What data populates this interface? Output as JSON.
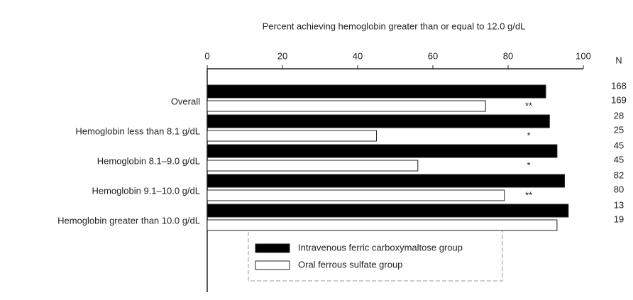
{
  "chart_data": {
    "type": "hbar",
    "title": "Percent achieving hemoglobin greater than or equal to 12.0 g/dL",
    "categories": [
      "Overall",
      "Hemoglobin less than 8.1 g/dL",
      "Hemoglobin 8.1–9.0 g/dL",
      "Hemoglobin 9.1–10.0 g/dL",
      "Hemoglobin greater than 10.0 g/dL"
    ],
    "series": [
      {
        "name": "Intravenous ferric carboxymaltose group",
        "color": "#000000",
        "values": [
          90,
          91,
          93,
          95,
          96
        ],
        "n": [
          168,
          28,
          45,
          82,
          13
        ]
      },
      {
        "name": "Oral ferrous sulfate group",
        "color": "#ffffff",
        "values": [
          74,
          45,
          56,
          79,
          93
        ],
        "n": [
          169,
          25,
          45,
          80,
          19
        ]
      }
    ],
    "n_header": "N",
    "annotations": [
      "**",
      "*",
      "*",
      "**",
      null
    ],
    "xlim": [
      0,
      100
    ],
    "xticks": [
      0,
      20,
      40,
      60,
      80,
      100
    ]
  }
}
